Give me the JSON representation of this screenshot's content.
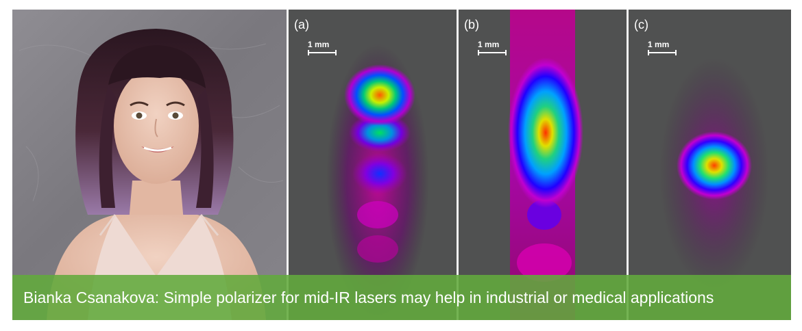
{
  "caption": {
    "text": "Bianka Csanakova: Simple polarizer for mid-IR lasers may help in industrial or medical applications"
  },
  "photo": {
    "subject": "portrait"
  },
  "panels": [
    {
      "label": "(a)",
      "scale_label": "1 mm"
    },
    {
      "label": "(b)",
      "scale_label": "1 mm"
    },
    {
      "label": "(c)",
      "scale_label": "1 mm"
    }
  ],
  "colors": {
    "caption_bg": "#62aa3c",
    "panel_bg": "#505151",
    "photo_wall": "#8a888e"
  }
}
